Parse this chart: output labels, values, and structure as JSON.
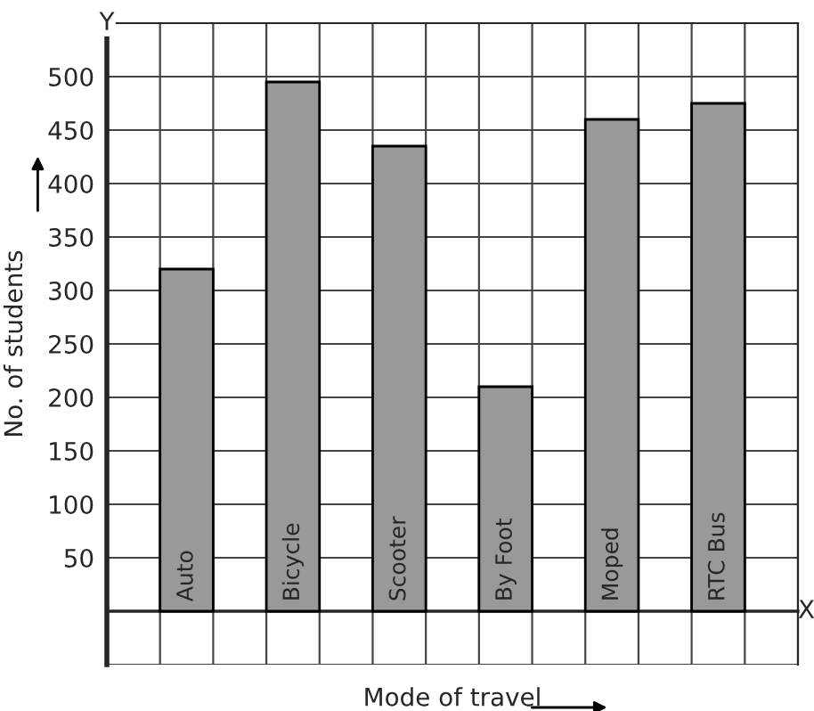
{
  "chart_data": {
    "type": "bar",
    "xlabel": "Mode of travel",
    "ylabel": "No. of students",
    "categories": [
      "Auto",
      "Bicycle",
      "Scooter",
      "By Foot",
      "Moped",
      "RTC Bus"
    ],
    "values": [
      320,
      495,
      435,
      210,
      460,
      475
    ],
    "color": "#999999",
    "ylim": [
      -50,
      550
    ],
    "yticks": [
      50,
      100,
      150,
      200,
      250,
      300,
      350,
      400,
      450,
      500
    ],
    "grid": true,
    "legend": false,
    "annotations": [
      "Y",
      "X"
    ]
  }
}
